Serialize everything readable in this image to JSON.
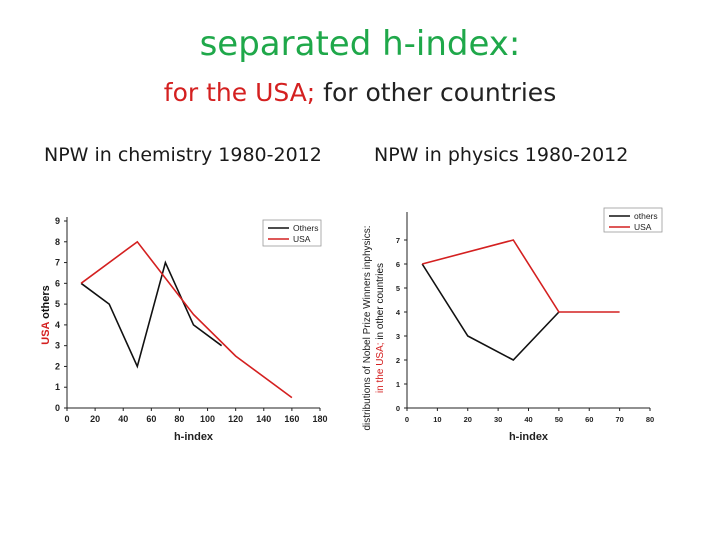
{
  "title": "separated h-index:",
  "subtitle": {
    "usa": "for the USA;",
    "rest": " for other countries"
  },
  "headings": {
    "left": "NPW in chemistry 1980-2012",
    "right": "NPW in physics 1980-2012"
  },
  "colors": {
    "others": "#111111",
    "usa": "#d42020",
    "title": "#1fa84a"
  },
  "chart_data": [
    {
      "type": "line",
      "title": "NPW in chemistry 1980-2012",
      "xlabel": "h-index",
      "ylabel_usa": "USA",
      "ylabel_others": "others",
      "xlim": [
        0,
        180
      ],
      "ylim": [
        0,
        9
      ],
      "xticks": [
        0,
        20,
        40,
        60,
        80,
        100,
        120,
        140,
        160,
        180
      ],
      "yticks": [
        0,
        1,
        2,
        3,
        4,
        5,
        6,
        7,
        8,
        9
      ],
      "legend_position": "top-right",
      "series": [
        {
          "name": "Others",
          "color": "#111111",
          "x": [
            10,
            30,
            50,
            70,
            90,
            110
          ],
          "y": [
            6,
            5,
            2,
            7,
            4,
            3
          ]
        },
        {
          "name": "USA",
          "color": "#d42020",
          "x": [
            10,
            50,
            90,
            120,
            160
          ],
          "y": [
            6,
            8,
            4.5,
            2.5,
            0.5
          ]
        }
      ]
    },
    {
      "type": "line",
      "title": "NPW in physics 1980-2012",
      "xlabel": "h-index",
      "ylabel_main": "distributions of Nobel Prize Winners inphysics:",
      "ylabel_usa": "in the USA;",
      "ylabel_others": " in other countries",
      "xlim": [
        0,
        80
      ],
      "ylim": [
        0,
        8
      ],
      "xticks": [
        0,
        10,
        20,
        30,
        40,
        50,
        60,
        70,
        80
      ],
      "yticks": [
        0,
        1,
        2,
        3,
        4,
        5,
        6,
        7
      ],
      "legend_position": "top-right",
      "series": [
        {
          "name": "others",
          "color": "#111111",
          "x": [
            5,
            20,
            35,
            50
          ],
          "y": [
            6,
            3,
            2,
            4
          ]
        },
        {
          "name": "USA",
          "color": "#d42020",
          "x": [
            5,
            35,
            50,
            70
          ],
          "y": [
            6,
            7,
            4,
            4
          ]
        }
      ]
    }
  ]
}
